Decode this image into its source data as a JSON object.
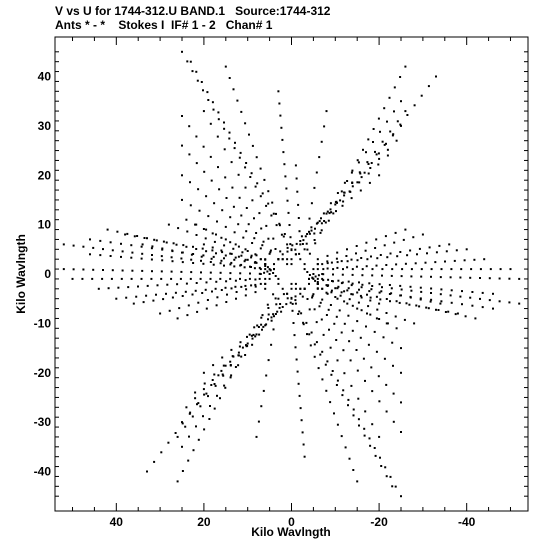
{
  "header": {
    "line1": "V vs U for 1744-312.U BAND.1   Source:1744-312",
    "line2": "Ants * - *    Stokes I  IF# 1 - 2   Chan# 1"
  },
  "chart_data": {
    "type": "scatter",
    "xlabel": "Kilo Wavlngth",
    "ylabel": "Kilo Wavlngth",
    "xlim": [
      54,
      -54
    ],
    "ylim": [
      -48,
      48
    ],
    "x_ticks": [
      40,
      20,
      0,
      -20,
      -40
    ],
    "x_tick_labels": [
      "40",
      "20",
      "0",
      "-20",
      "-40"
    ],
    "y_ticks": [
      40,
      30,
      20,
      10,
      0,
      -10,
      -20,
      -30,
      -40
    ],
    "y_tick_labels": [
      "40",
      "30",
      "20",
      "10",
      "0",
      "-10",
      "-20",
      "-30",
      "-40"
    ],
    "grid": false,
    "marker": "dot",
    "color": "#000000",
    "tracks": [
      {
        "group": "upper",
        "from": [
          25,
          45
        ],
        "to": [
          1,
          6
        ],
        "points": 21
      },
      {
        "group": "upper",
        "from": [
          23,
          43
        ],
        "to": [
          -1,
          4
        ],
        "points": 20
      },
      {
        "group": "upper",
        "from": [
          15,
          42
        ],
        "to": [
          0,
          3
        ],
        "points": 18
      },
      {
        "group": "upper",
        "from": [
          3,
          37
        ],
        "to": [
          0,
          5
        ],
        "points": 14
      },
      {
        "group": "upper",
        "from": [
          -1,
          22
        ],
        "to": [
          -2,
          6
        ],
        "points": 7
      },
      {
        "group": "upper",
        "from": [
          -8,
          33
        ],
        "to": [
          -3,
          5
        ],
        "points": 10
      },
      {
        "group": "upper",
        "from": [
          -26,
          42
        ],
        "to": [
          -3,
          2
        ],
        "points": 20
      },
      {
        "group": "upper",
        "from": [
          -33,
          40
        ],
        "to": [
          -2,
          3
        ],
        "points": 20
      },
      {
        "group": "upper",
        "from": [
          -25,
          35
        ],
        "to": [
          -1,
          4
        ],
        "points": 16
      },
      {
        "group": "upper",
        "from": [
          -26,
          33
        ],
        "to": [
          0,
          2
        ],
        "points": 16
      },
      {
        "group": "upper",
        "from": [
          -25,
          30
        ],
        "to": [
          1,
          3
        ],
        "points": 15
      },
      {
        "group": "upper",
        "from": [
          -24,
          27
        ],
        "to": [
          2,
          3
        ],
        "points": 14
      },
      {
        "group": "upper",
        "from": [
          -22,
          24
        ],
        "to": [
          2,
          4
        ],
        "points": 12
      },
      {
        "group": "upper",
        "from": [
          -20,
          20
        ],
        "to": [
          3,
          3
        ],
        "points": 12
      },
      {
        "group": "upper",
        "from": [
          20,
          33
        ],
        "to": [
          1,
          2
        ],
        "points": 13
      },
      {
        "group": "upper",
        "from": [
          25,
          32
        ],
        "to": [
          2,
          3
        ],
        "points": 15
      },
      {
        "group": "upper",
        "from": [
          25,
          26
        ],
        "to": [
          3,
          3
        ],
        "points": 14
      },
      {
        "group": "upper",
        "from": [
          25,
          20
        ],
        "to": [
          3,
          3
        ],
        "points": 13
      },
      {
        "group": "upper",
        "from": [
          25,
          15
        ],
        "to": [
          3,
          3
        ],
        "points": 12
      },
      {
        "group": "upper",
        "from": [
          22,
          10
        ],
        "to": [
          4,
          2
        ],
        "points": 10
      },
      {
        "group": "upper",
        "from": [
          20,
          6
        ],
        "to": [
          4,
          1
        ],
        "points": 9
      },
      {
        "group": "lower",
        "from": [
          -25,
          -45
        ],
        "to": [
          -1,
          -6
        ],
        "points": 21
      },
      {
        "group": "lower",
        "from": [
          -23,
          -43
        ],
        "to": [
          1,
          -4
        ],
        "points": 20
      },
      {
        "group": "lower",
        "from": [
          -15,
          -42
        ],
        "to": [
          0,
          -3
        ],
        "points": 18
      },
      {
        "group": "lower",
        "from": [
          -3,
          -37
        ],
        "to": [
          0,
          -5
        ],
        "points": 14
      },
      {
        "group": "lower",
        "from": [
          8,
          -33
        ],
        "to": [
          3,
          -5
        ],
        "points": 10
      },
      {
        "group": "lower",
        "from": [
          26,
          -42
        ],
        "to": [
          3,
          -2
        ],
        "points": 20
      },
      {
        "group": "lower",
        "from": [
          33,
          -40
        ],
        "to": [
          2,
          -3
        ],
        "points": 20
      },
      {
        "group": "lower",
        "from": [
          25,
          -35
        ],
        "to": [
          1,
          -4
        ],
        "points": 16
      },
      {
        "group": "lower",
        "from": [
          26,
          -33
        ],
        "to": [
          0,
          -2
        ],
        "points": 16
      },
      {
        "group": "lower",
        "from": [
          25,
          -30
        ],
        "to": [
          -1,
          -3
        ],
        "points": 15
      },
      {
        "group": "lower",
        "from": [
          24,
          -27
        ],
        "to": [
          -2,
          -3
        ],
        "points": 14
      },
      {
        "group": "lower",
        "from": [
          22,
          -24
        ],
        "to": [
          -2,
          -4
        ],
        "points": 12
      },
      {
        "group": "lower",
        "from": [
          20,
          -20
        ],
        "to": [
          -3,
          -3
        ],
        "points": 12
      },
      {
        "group": "lower",
        "from": [
          -20,
          -33
        ],
        "to": [
          -1,
          -2
        ],
        "points": 13
      },
      {
        "group": "lower",
        "from": [
          -25,
          -32
        ],
        "to": [
          -2,
          -3
        ],
        "points": 15
      },
      {
        "group": "lower",
        "from": [
          -25,
          -26
        ],
        "to": [
          -3,
          -3
        ],
        "points": 14
      },
      {
        "group": "lower",
        "from": [
          -25,
          -20
        ],
        "to": [
          -3,
          -3
        ],
        "points": 13
      },
      {
        "group": "lower",
        "from": [
          -25,
          -15
        ],
        "to": [
          -3,
          -3
        ],
        "points": 12
      },
      {
        "group": "lower",
        "from": [
          -22,
          -10
        ],
        "to": [
          -4,
          -2
        ],
        "points": 10
      },
      {
        "group": "lower",
        "from": [
          -20,
          -6
        ],
        "to": [
          -4,
          -1
        ],
        "points": 9
      },
      {
        "group": "left",
        "from": [
          52,
          6
        ],
        "to": [
          5,
          1
        ],
        "points": 22
      },
      {
        "group": "left",
        "from": [
          52,
          1
        ],
        "to": [
          5,
          0
        ],
        "points": 22
      },
      {
        "group": "left",
        "from": [
          50,
          -1
        ],
        "to": [
          5,
          -1
        ],
        "points": 21
      },
      {
        "group": "left",
        "from": [
          46,
          7
        ],
        "to": [
          6,
          2
        ],
        "points": 18
      },
      {
        "group": "left",
        "from": [
          46,
          4
        ],
        "to": [
          6,
          1
        ],
        "points": 18
      },
      {
        "group": "left",
        "from": [
          44,
          -3
        ],
        "to": [
          6,
          -1
        ],
        "points": 18
      },
      {
        "group": "left",
        "from": [
          42,
          9
        ],
        "to": [
          6,
          2
        ],
        "points": 17
      },
      {
        "group": "left",
        "from": [
          40,
          -5
        ],
        "to": [
          6,
          -2
        ],
        "points": 16
      },
      {
        "group": "left",
        "from": [
          38,
          8
        ],
        "to": [
          7,
          3
        ],
        "points": 15
      },
      {
        "group": "left",
        "from": [
          36,
          -6
        ],
        "to": [
          7,
          -2
        ],
        "points": 14
      },
      {
        "group": "left",
        "from": [
          34,
          6
        ],
        "to": [
          7,
          1
        ],
        "points": 13
      },
      {
        "group": "left",
        "from": [
          30,
          -8
        ],
        "to": [
          6,
          -2
        ],
        "points": 12
      },
      {
        "group": "left",
        "from": [
          28,
          10
        ],
        "to": [
          7,
          3
        ],
        "points": 11
      },
      {
        "group": "left",
        "from": [
          26,
          -9
        ],
        "to": [
          6,
          -3
        ],
        "points": 10
      },
      {
        "group": "left",
        "from": [
          24,
          11
        ],
        "to": [
          6,
          3
        ],
        "points": 9
      },
      {
        "group": "right",
        "from": [
          -52,
          -6
        ],
        "to": [
          -5,
          -1
        ],
        "points": 22
      },
      {
        "group": "right",
        "from": [
          -52,
          -1
        ],
        "to": [
          -5,
          0
        ],
        "points": 22
      },
      {
        "group": "right",
        "from": [
          -50,
          1
        ],
        "to": [
          -5,
          1
        ],
        "points": 21
      },
      {
        "group": "right",
        "from": [
          -46,
          -7
        ],
        "to": [
          -6,
          -2
        ],
        "points": 18
      },
      {
        "group": "right",
        "from": [
          -46,
          -4
        ],
        "to": [
          -6,
          -1
        ],
        "points": 18
      },
      {
        "group": "right",
        "from": [
          -44,
          3
        ],
        "to": [
          -6,
          1
        ],
        "points": 18
      },
      {
        "group": "right",
        "from": [
          -42,
          -9
        ],
        "to": [
          -6,
          -2
        ],
        "points": 17
      },
      {
        "group": "right",
        "from": [
          -40,
          5
        ],
        "to": [
          -6,
          2
        ],
        "points": 16
      },
      {
        "group": "right",
        "from": [
          -38,
          -8
        ],
        "to": [
          -7,
          -3
        ],
        "points": 15
      },
      {
        "group": "right",
        "from": [
          -36,
          6
        ],
        "to": [
          -7,
          2
        ],
        "points": 14
      },
      {
        "group": "right",
        "from": [
          -34,
          -6
        ],
        "to": [
          -7,
          -1
        ],
        "points": 13
      },
      {
        "group": "right",
        "from": [
          -30,
          8
        ],
        "to": [
          -6,
          2
        ],
        "points": 12
      },
      {
        "group": "right",
        "from": [
          -28,
          -10
        ],
        "to": [
          -7,
          -3
        ],
        "points": 11
      },
      {
        "group": "right",
        "from": [
          -26,
          9
        ],
        "to": [
          -6,
          3
        ],
        "points": 10
      },
      {
        "group": "right",
        "from": [
          -24,
          -11
        ],
        "to": [
          -6,
          -3
        ],
        "points": 9
      },
      {
        "group": "center",
        "from": [
          6,
          2
        ],
        "to": [
          3,
          -1
        ],
        "points": 6
      },
      {
        "group": "center",
        "from": [
          -6,
          -2
        ],
        "to": [
          -3,
          1
        ],
        "points": 6
      },
      {
        "group": "center",
        "from": [
          7,
          0
        ],
        "to": [
          4,
          1
        ],
        "points": 5
      },
      {
        "group": "center",
        "from": [
          -7,
          0
        ],
        "to": [
          -4,
          -1
        ],
        "points": 5
      }
    ]
  }
}
